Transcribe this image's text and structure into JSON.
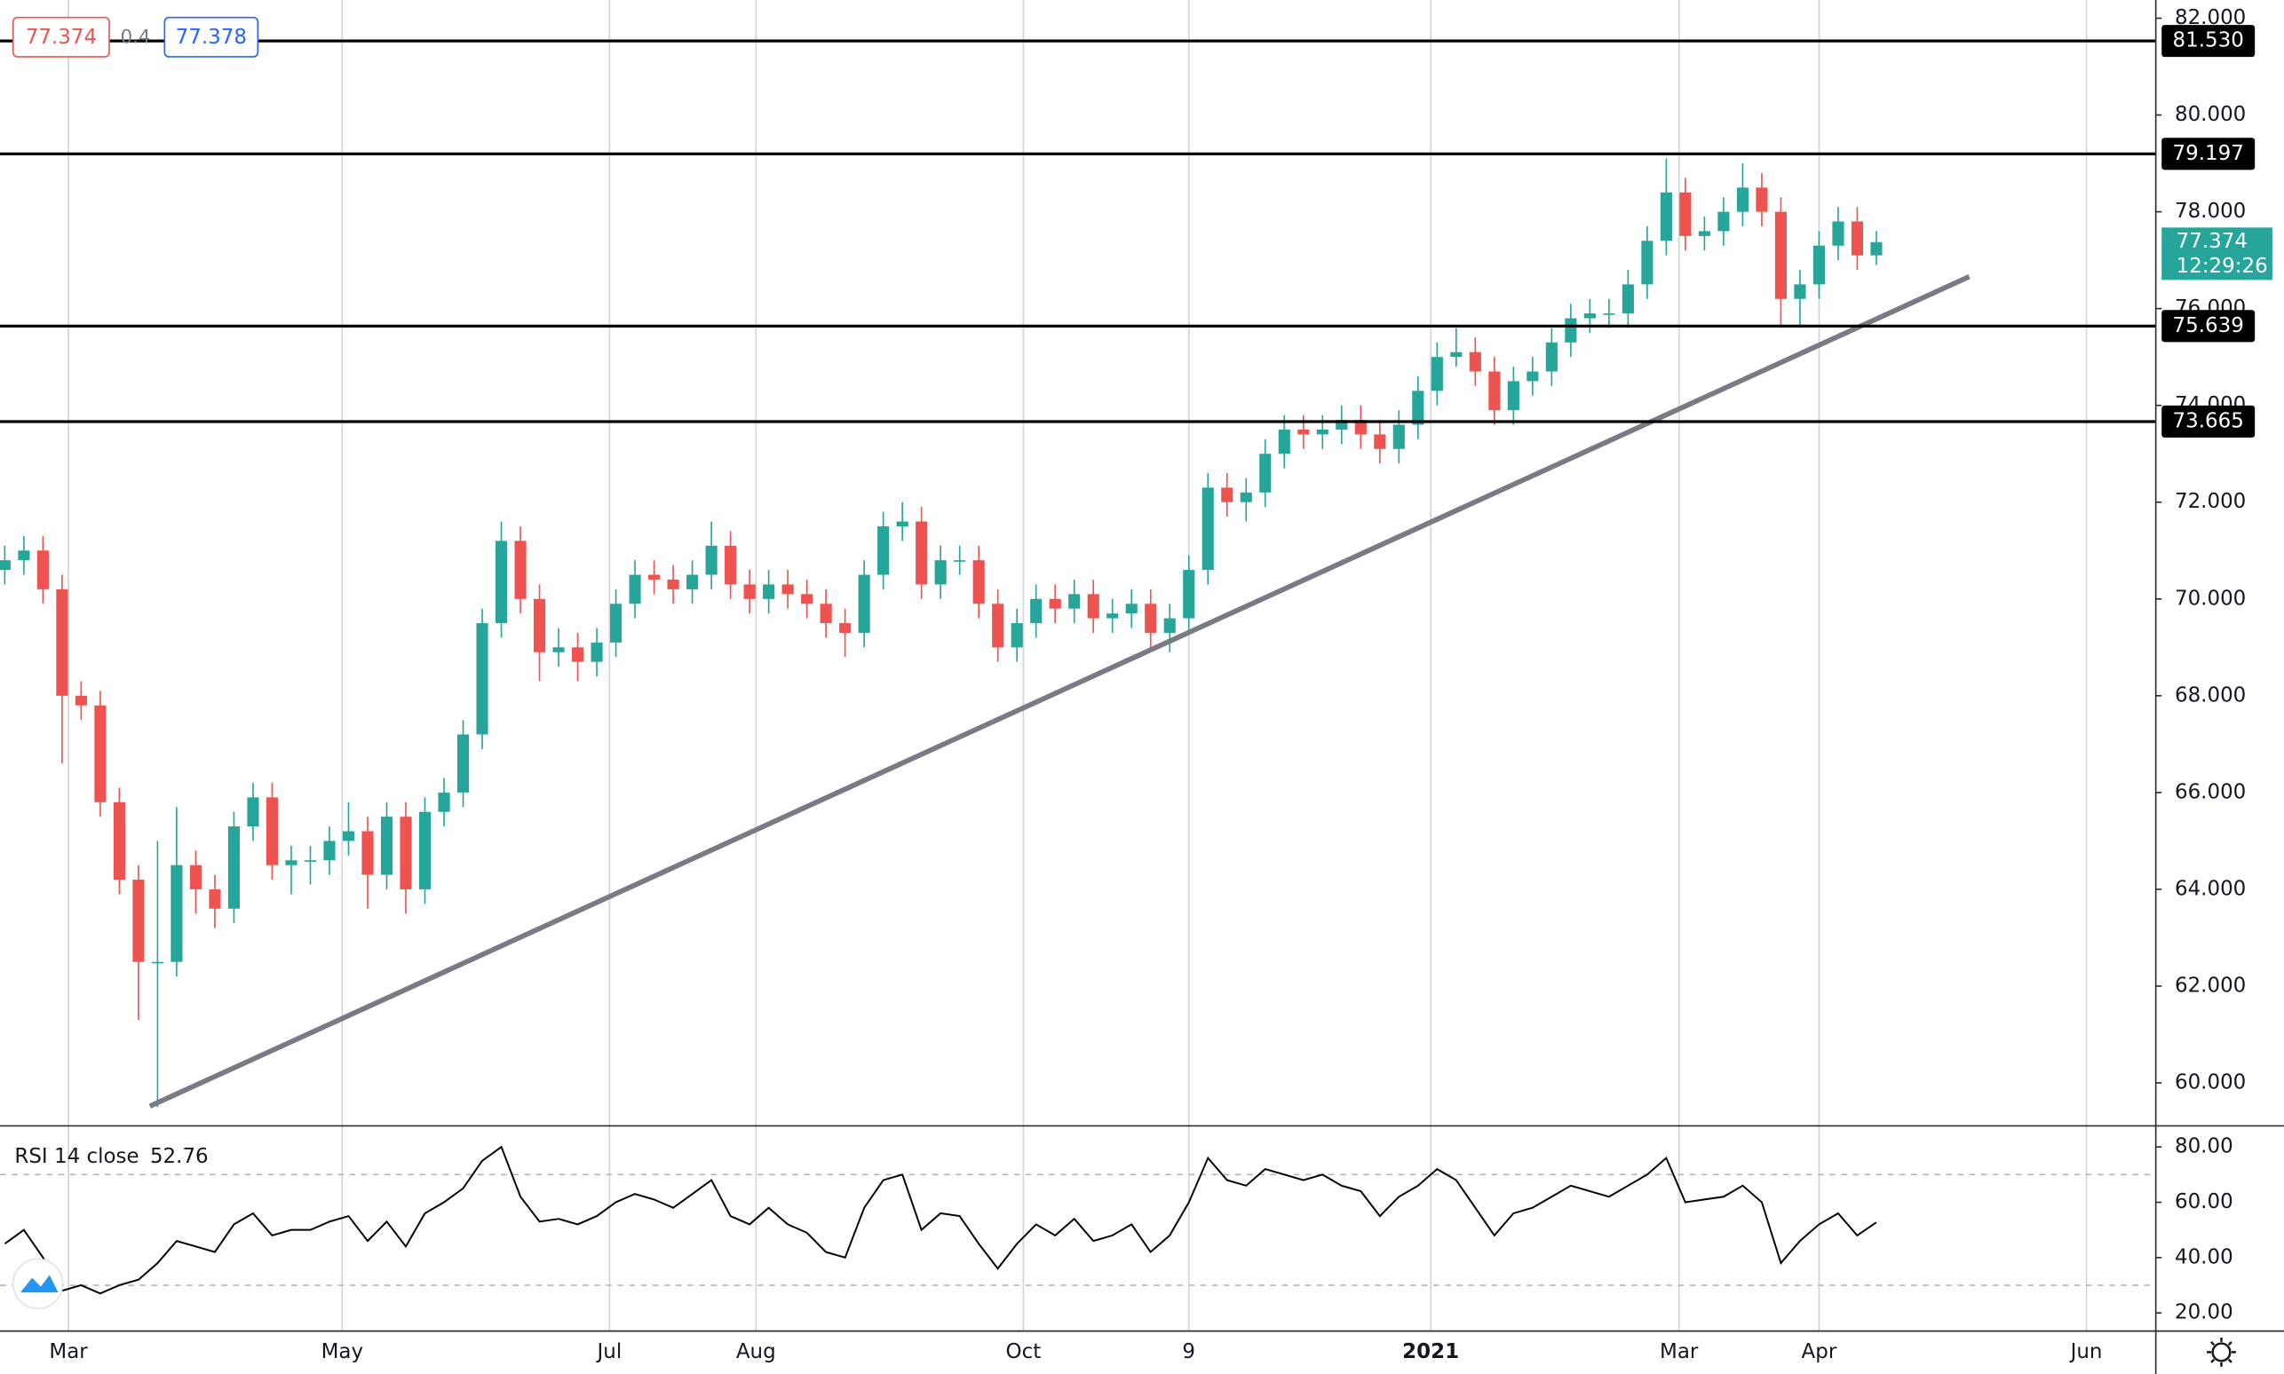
{
  "header": {
    "bid": "77.374",
    "spread": "0.4",
    "ask": "77.378"
  },
  "chart_data": {
    "type": "candlestick",
    "up_color": "#26a69a",
    "down_color": "#ef5350",
    "x": [
      -10,
      -7,
      -4,
      -1,
      2,
      5,
      8,
      11,
      14,
      17,
      20,
      23,
      26,
      29,
      32,
      35,
      38,
      41,
      44,
      47,
      50,
      53,
      56,
      59,
      62,
      65,
      68,
      71,
      74,
      77,
      80,
      83,
      86,
      89,
      92,
      95,
      98,
      101,
      104,
      107,
      110,
      113,
      116,
      119,
      122,
      125,
      128,
      131,
      134,
      137,
      140,
      143,
      146,
      149,
      152,
      155,
      158,
      161,
      164,
      167,
      170,
      173,
      176,
      179,
      182,
      185,
      188,
      191,
      194,
      197,
      200,
      203,
      206,
      209,
      212,
      215,
      218,
      221,
      224,
      227,
      230,
      233,
      236,
      239,
      242,
      245,
      248,
      251,
      254,
      257,
      260,
      263,
      266,
      269,
      272,
      275,
      278,
      281,
      284
    ],
    "open": [
      70.6,
      70.8,
      71.0,
      70.2,
      68.0,
      67.8,
      65.8,
      64.2,
      62.5,
      62.5,
      64.5,
      64.0,
      63.6,
      65.3,
      65.9,
      64.5,
      64.6,
      64.6,
      65.0,
      65.2,
      64.3,
      65.5,
      64.0,
      65.6,
      66.0,
      67.2,
      69.5,
      71.2,
      70.0,
      68.9,
      69.0,
      68.7,
      69.1,
      69.9,
      70.5,
      70.4,
      70.2,
      70.5,
      71.1,
      70.3,
      70.0,
      70.3,
      70.1,
      69.9,
      69.5,
      69.3,
      70.5,
      71.5,
      71.6,
      70.3,
      70.8,
      70.8,
      69.9,
      69.0,
      69.5,
      70.0,
      69.8,
      70.1,
      69.6,
      69.7,
      69.9,
      69.3,
      69.6,
      70.6,
      72.3,
      72.0,
      72.2,
      73.0,
      73.5,
      73.4,
      73.5,
      73.7,
      73.4,
      73.1,
      73.6,
      74.3,
      75.0,
      75.1,
      74.7,
      73.9,
      74.5,
      74.7,
      75.3,
      75.8,
      75.9,
      75.9,
      76.5,
      77.4,
      78.4,
      77.5,
      77.6,
      78.0,
      78.5,
      78.0,
      76.2,
      76.5,
      77.3,
      77.8,
      77.1
    ],
    "high": [
      71.1,
      71.3,
      71.3,
      70.5,
      68.3,
      68.1,
      66.1,
      64.5,
      65.0,
      65.7,
      64.8,
      64.3,
      65.6,
      66.2,
      66.2,
      64.9,
      64.9,
      65.3,
      65.8,
      65.5,
      65.8,
      65.8,
      65.9,
      66.3,
      67.5,
      69.8,
      71.6,
      71.5,
      70.3,
      69.4,
      69.3,
      69.4,
      70.2,
      70.8,
      70.8,
      70.7,
      70.8,
      71.6,
      71.4,
      70.6,
      70.6,
      70.6,
      70.4,
      70.2,
      69.8,
      70.8,
      71.8,
      72.0,
      71.9,
      71.1,
      71.1,
      71.1,
      70.2,
      69.8,
      70.3,
      70.3,
      70.4,
      70.4,
      70.0,
      70.2,
      70.2,
      69.9,
      70.9,
      72.6,
      72.6,
      72.5,
      73.3,
      73.8,
      73.8,
      73.8,
      74.0,
      74.0,
      73.7,
      73.9,
      74.6,
      75.3,
      75.6,
      75.4,
      75.0,
      74.8,
      75.0,
      75.6,
      76.1,
      76.2,
      76.2,
      76.8,
      77.7,
      79.1,
      78.7,
      77.9,
      78.3,
      79.0,
      78.8,
      78.3,
      76.8,
      77.6,
      78.1,
      78.1,
      77.6
    ],
    "low": [
      70.3,
      70.5,
      69.9,
      66.6,
      67.5,
      65.5,
      63.9,
      61.3,
      59.5,
      62.2,
      63.5,
      63.2,
      63.3,
      65.0,
      64.2,
      63.9,
      64.1,
      64.3,
      64.7,
      63.6,
      64.0,
      63.5,
      63.7,
      65.3,
      65.7,
      66.9,
      69.2,
      69.7,
      68.3,
      68.6,
      68.3,
      68.4,
      68.8,
      69.6,
      70.1,
      69.9,
      69.9,
      70.2,
      70.0,
      69.7,
      69.7,
      69.8,
      69.6,
      69.2,
      68.8,
      69.0,
      70.2,
      71.2,
      70.0,
      70.0,
      70.5,
      69.6,
      68.7,
      68.7,
      69.2,
      69.5,
      69.5,
      69.3,
      69.3,
      69.4,
      69.0,
      68.9,
      69.3,
      70.3,
      71.7,
      71.6,
      71.9,
      72.7,
      73.1,
      73.1,
      73.2,
      73.1,
      72.8,
      72.8,
      73.3,
      74.0,
      74.8,
      74.4,
      73.6,
      73.6,
      74.2,
      74.4,
      75.0,
      75.5,
      75.6,
      75.6,
      76.2,
      77.1,
      77.2,
      77.2,
      77.3,
      77.7,
      77.7,
      75.6,
      75.6,
      76.2,
      77.0,
      76.8,
      76.9
    ],
    "close": [
      70.8,
      71.0,
      70.2,
      68.0,
      67.8,
      65.8,
      64.2,
      62.5,
      62.5,
      64.5,
      64.0,
      63.6,
      65.3,
      65.9,
      64.5,
      64.6,
      64.6,
      65.0,
      65.2,
      64.3,
      65.5,
      64.0,
      65.6,
      66.0,
      67.2,
      69.5,
      71.2,
      70.0,
      68.9,
      69.0,
      68.7,
      69.1,
      69.9,
      70.5,
      70.4,
      70.2,
      70.5,
      71.1,
      70.3,
      70.0,
      70.3,
      70.1,
      69.9,
      69.5,
      69.3,
      70.5,
      71.5,
      71.6,
      70.3,
      70.8,
      70.8,
      69.9,
      69.0,
      69.5,
      70.0,
      69.8,
      70.1,
      69.6,
      69.7,
      69.9,
      69.3,
      69.6,
      70.6,
      72.3,
      72.0,
      72.2,
      73.0,
      73.5,
      73.4,
      73.5,
      73.7,
      73.4,
      73.1,
      73.6,
      74.3,
      75.0,
      75.1,
      74.7,
      73.9,
      74.5,
      74.7,
      75.3,
      75.8,
      75.9,
      75.9,
      76.5,
      77.4,
      78.4,
      77.5,
      77.6,
      78.0,
      78.5,
      78.0,
      76.2,
      76.5,
      77.3,
      77.8,
      77.1,
      77.374
    ],
    "xlim": [
      -10.75,
      327.9
    ],
    "xticks": [
      {
        "value": 0,
        "label": "Mar"
      },
      {
        "value": 43,
        "label": "May"
      },
      {
        "value": 85,
        "label": "Jul"
      },
      {
        "value": 108,
        "label": "Aug"
      },
      {
        "value": 150,
        "label": "Oct"
      },
      {
        "value": 176,
        "label": "9"
      },
      {
        "value": 214,
        "label": "2021"
      },
      {
        "value": 253,
        "label": "Mar"
      },
      {
        "value": 275,
        "label": "Apr"
      },
      {
        "value": 317,
        "label": "Jun"
      }
    ],
    "ylim": [
      59.128,
      82.376
    ],
    "yticks": [
      {
        "value": 60,
        "label": "60.000"
      },
      {
        "value": 62,
        "label": "62.000"
      },
      {
        "value": 64,
        "label": "64.000"
      },
      {
        "value": 66,
        "label": "66.000"
      },
      {
        "value": 68,
        "label": "68.000"
      },
      {
        "value": 70,
        "label": "70.000"
      },
      {
        "value": 72,
        "label": "72.000"
      },
      {
        "value": 74,
        "label": "74.000"
      },
      {
        "value": 76,
        "label": "76.000"
      },
      {
        "value": 78,
        "label": "78.000"
      },
      {
        "value": 80,
        "label": "80.000"
      },
      {
        "value": 82,
        "label": "82.000"
      }
    ],
    "levels": [
      {
        "value": 81.53,
        "label": "81.530"
      },
      {
        "value": 79.197,
        "label": "79.197"
      },
      {
        "value": 75.639,
        "label": "75.639"
      },
      {
        "value": 73.665,
        "label": "73.665"
      }
    ],
    "trendline": {
      "x": [
        12.8,
        298.6
      ],
      "y": [
        59.52,
        76.66
      ],
      "color": "#787b86"
    },
    "countdown": "12:29:26",
    "rsi": {
      "name": "RSI 14 close",
      "values": [
        45,
        50,
        40,
        28,
        30,
        27,
        30,
        32,
        38,
        46,
        44,
        42,
        52,
        56,
        48,
        50,
        50,
        53,
        55,
        46,
        53,
        44,
        56,
        60,
        65,
        75,
        80,
        62,
        53,
        54,
        52,
        55,
        60,
        63,
        61,
        58,
        63,
        68,
        55,
        52,
        58,
        52,
        49,
        42,
        40,
        58,
        68,
        70,
        50,
        56,
        55,
        45,
        36,
        45,
        52,
        48,
        54,
        46,
        48,
        52,
        42,
        48,
        60,
        76,
        68,
        66,
        72,
        70,
        68,
        70,
        66,
        64,
        55,
        62,
        66,
        72,
        68,
        58,
        48,
        56,
        58,
        62,
        66,
        64,
        62,
        66,
        70,
        76,
        60,
        61,
        62,
        66,
        60,
        38,
        46,
        52,
        56,
        48,
        52.76
      ],
      "ylim": [
        13.7,
        87.9
      ],
      "yticks": [
        {
          "value": 20,
          "label": "20.00"
        },
        {
          "value": 40,
          "label": "40.00"
        },
        {
          "value": 60,
          "label": "60.00"
        },
        {
          "value": 80,
          "label": "80.00"
        }
      ],
      "bands": [
        30,
        70
      ]
    }
  }
}
